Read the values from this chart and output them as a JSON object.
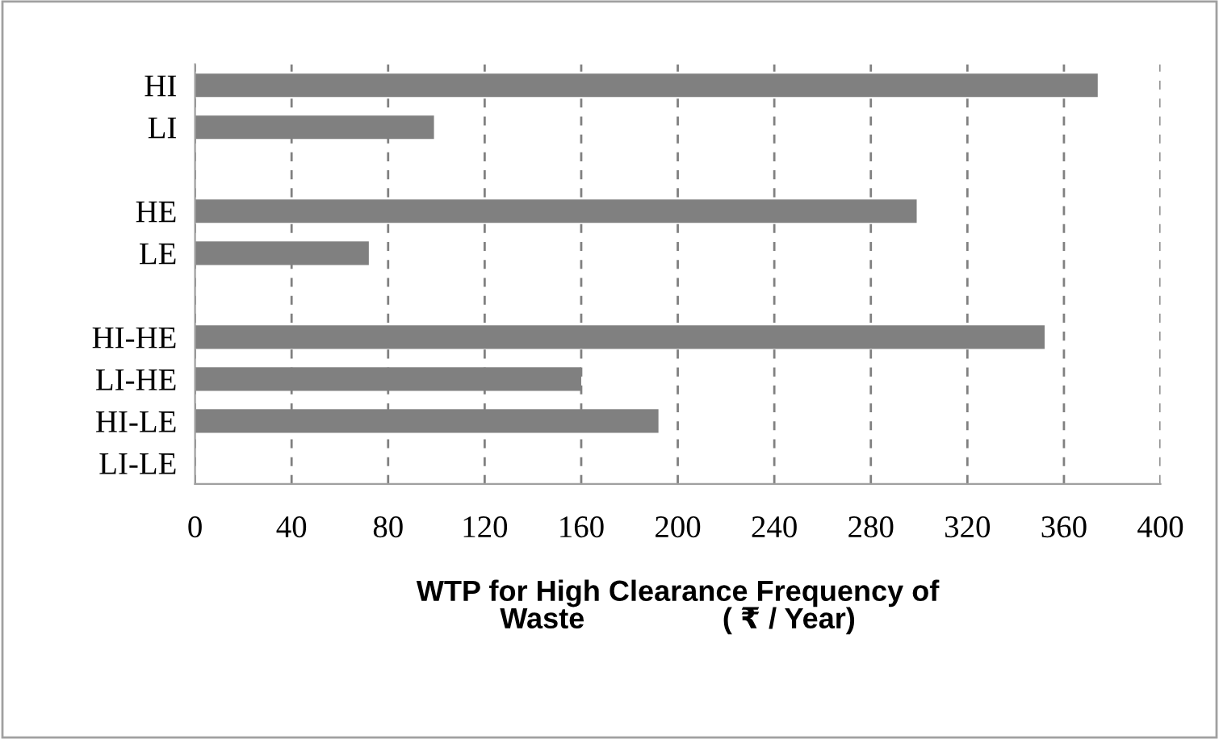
{
  "chart_data": {
    "type": "bar",
    "orientation": "horizontal",
    "xlabel": "WTP for High Clearance Frequency of\nWaste                 ( ₹ / Year)",
    "categories": [
      "HI",
      "LI",
      null,
      "HE",
      "LE",
      null,
      "HI-HE",
      "LI-HE",
      "HI-LE",
      "LI-LE"
    ],
    "values": [
      374,
      99,
      null,
      299,
      72,
      null,
      352,
      160,
      192,
      0
    ],
    "color": "#808080",
    "xlim": [
      0,
      400
    ],
    "xticks": [
      0,
      40,
      80,
      120,
      160,
      200,
      240,
      280,
      320,
      360,
      400
    ],
    "grid": "x"
  }
}
